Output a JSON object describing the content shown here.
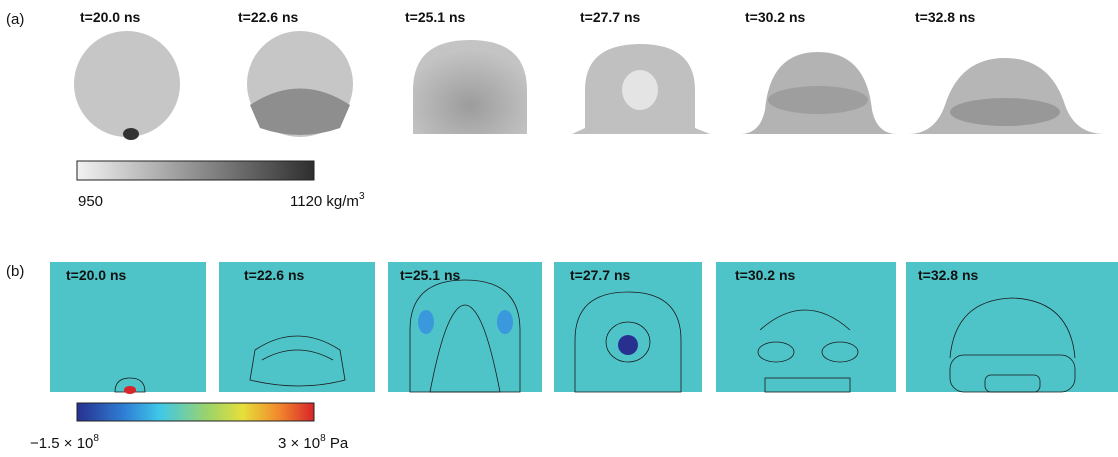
{
  "panels": [
    {
      "label": "(a)",
      "frames": [
        "t=20.0 ns",
        "t=22.6 ns",
        "t=25.1 ns",
        "t=27.7 ns",
        "t=30.2 ns",
        "t=32.8 ns"
      ],
      "colorbar": {
        "min_label": "950",
        "max_label": {
          "base": "1120 kg/m",
          "sup": "3",
          "unit": ""
        }
      }
    },
    {
      "label": "(b)",
      "frames": [
        "t=20.0 ns",
        "t=22.6 ns",
        "t=25.1 ns",
        "t=27.7 ns",
        "t=30.2 ns",
        "t=32.8 ns"
      ],
      "colorbar": {
        "min_label": {
          "base": "−1.5 × 10",
          "sup": "8"
        },
        "max_label": {
          "base": "3 × 10",
          "sup": "8",
          "unit": " Pa"
        }
      }
    }
  ]
}
